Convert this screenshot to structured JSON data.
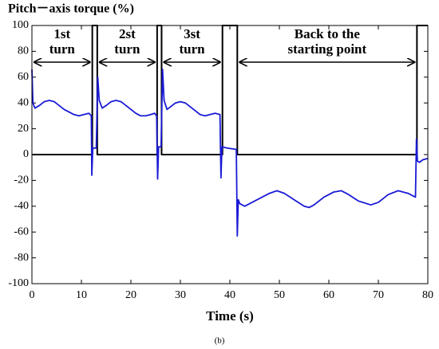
{
  "chart_data": {
    "type": "line",
    "title": "Pitch－axis torque (%)",
    "x_label": "Time (s)",
    "caption": "(b)",
    "xlim": [
      0,
      80
    ],
    "xticks": [
      0,
      10,
      20,
      30,
      40,
      50,
      60,
      70,
      80
    ],
    "ylim": [
      -100,
      100
    ],
    "yticks": [
      -100,
      -80,
      -60,
      -40,
      -20,
      0,
      20,
      40,
      60,
      80,
      100
    ],
    "series": [
      {
        "color": "#000000",
        "x": [
          0,
          12.2,
          12.2,
          13.2,
          13.2,
          25.3,
          25.3,
          26.2,
          26.2,
          38.5,
          38.5,
          41.5,
          41.5,
          77.8,
          77.8,
          80
        ],
        "values": [
          0,
          0,
          100,
          100,
          0,
          0,
          100,
          100,
          0,
          0,
          100,
          100,
          0,
          0,
          100,
          100
        ]
      },
      {
        "color": "#1a1ad6",
        "x": [
          0,
          0.2,
          0.6,
          1.5,
          2.5,
          3.5,
          4.5,
          5.5,
          6.5,
          7.5,
          8.5,
          9.5,
          10.5,
          11.5,
          12.0,
          12.1,
          12.3,
          13.0,
          13.3,
          13.6,
          14.2,
          15,
          16,
          17,
          18,
          19,
          20,
          21,
          22,
          23,
          24,
          24.8,
          25.2,
          25.4,
          25.6,
          26.1,
          26.4,
          26.7,
          27.3,
          28,
          29,
          30,
          31,
          32,
          33,
          34,
          35,
          36,
          37,
          38,
          38.2,
          38.4,
          39.5,
          41.3,
          41.5,
          41.7,
          42,
          43,
          44,
          46,
          48,
          49.5,
          51,
          53,
          55,
          56,
          57,
          59,
          61,
          62.5,
          64,
          66,
          68.5,
          70,
          72,
          74,
          76,
          77.5,
          77.7,
          77.9,
          78.3,
          79,
          80
        ],
        "values": [
          66,
          40,
          36,
          38,
          41,
          42,
          41,
          38,
          35,
          33,
          31,
          30,
          31,
          32,
          30,
          -16,
          5,
          5,
          60,
          42,
          36,
          38,
          41,
          42,
          41,
          38,
          35,
          32,
          30,
          30,
          31,
          32,
          30,
          -19,
          6,
          6,
          66,
          42,
          35,
          37,
          40,
          41,
          40,
          37,
          34,
          31,
          30,
          31,
          32,
          31,
          -18,
          6,
          5,
          4,
          -63,
          -35,
          -38,
          -40,
          -38,
          -34,
          -30,
          -28,
          -30,
          -35,
          -40,
          -41,
          -39,
          -33,
          -29,
          -28,
          -31,
          -36,
          -39,
          -37,
          -31,
          -28,
          -30,
          -33,
          12,
          -5,
          -6,
          -4,
          -3
        ]
      }
    ],
    "annotations": [
      {
        "lines": [
          "1st",
          "turn"
        ],
        "span": [
          0,
          12.2
        ]
      },
      {
        "lines": [
          "2st",
          "turn"
        ],
        "span": [
          13.2,
          25.3
        ]
      },
      {
        "lines": [
          "3st",
          "turn"
        ],
        "span": [
          26.2,
          38.5
        ]
      },
      {
        "lines": [
          "Back to the",
          "starting point"
        ],
        "span": [
          41.5,
          77.8
        ]
      }
    ]
  }
}
